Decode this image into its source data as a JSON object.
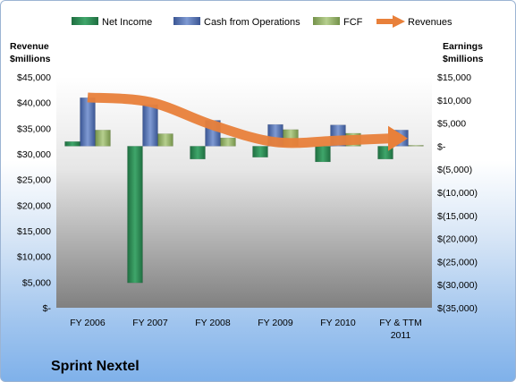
{
  "caption": "Sprint Nextel",
  "colors": {
    "net_income": "#2e8b57",
    "cash_from_operations": "#4f6fb3",
    "fcf": "#8fae5d",
    "revenues": "#e8803a"
  },
  "chart_data": {
    "type": "bar",
    "categories": [
      [
        "FY 2006"
      ],
      [
        "FY 2007"
      ],
      [
        "FY 2008"
      ],
      [
        "FY 2009"
      ],
      [
        "FY 2010"
      ],
      [
        "FY & TTM",
        "2011"
      ]
    ],
    "left_axis": {
      "title": [
        "Revenue",
        "$millions"
      ],
      "ylim": [
        0,
        45000
      ],
      "tick_labels": [
        "$45,000",
        "$40,000",
        "$35,000",
        "$30,000",
        "$25,000",
        "$20,000",
        "$15,000",
        "$10,000",
        "$5,000",
        "$-"
      ]
    },
    "right_axis": {
      "title": [
        "Earnings",
        "$millions"
      ],
      "ylim": [
        -35000,
        15000
      ],
      "tick_labels": [
        "$15,000",
        "$10,000",
        "$5,000",
        "$-",
        "$(5,000)",
        "$(10,000)",
        "$(15,000)",
        "$(20,000)",
        "$(25,000)",
        "$(30,000)",
        "$(35,000)"
      ]
    },
    "series": [
      {
        "name": "Net Income",
        "axis": "right",
        "kind": "bar",
        "values": [
          1000,
          -29600,
          -2800,
          -2400,
          -3400,
          -2800
        ]
      },
      {
        "name": "Cash from Operations",
        "axis": "right",
        "kind": "bar",
        "values": [
          10500,
          9000,
          5600,
          4700,
          4600,
          3500
        ]
      },
      {
        "name": "FCF",
        "axis": "right",
        "kind": "bar",
        "values": [
          3500,
          2700,
          1800,
          3600,
          2800,
          200
        ]
      },
      {
        "name": "Revenues",
        "axis": "left",
        "kind": "line",
        "values": [
          41000,
          40100,
          35600,
          32300,
          32600,
          33000
        ]
      }
    ],
    "legend": {
      "position": "top"
    }
  }
}
